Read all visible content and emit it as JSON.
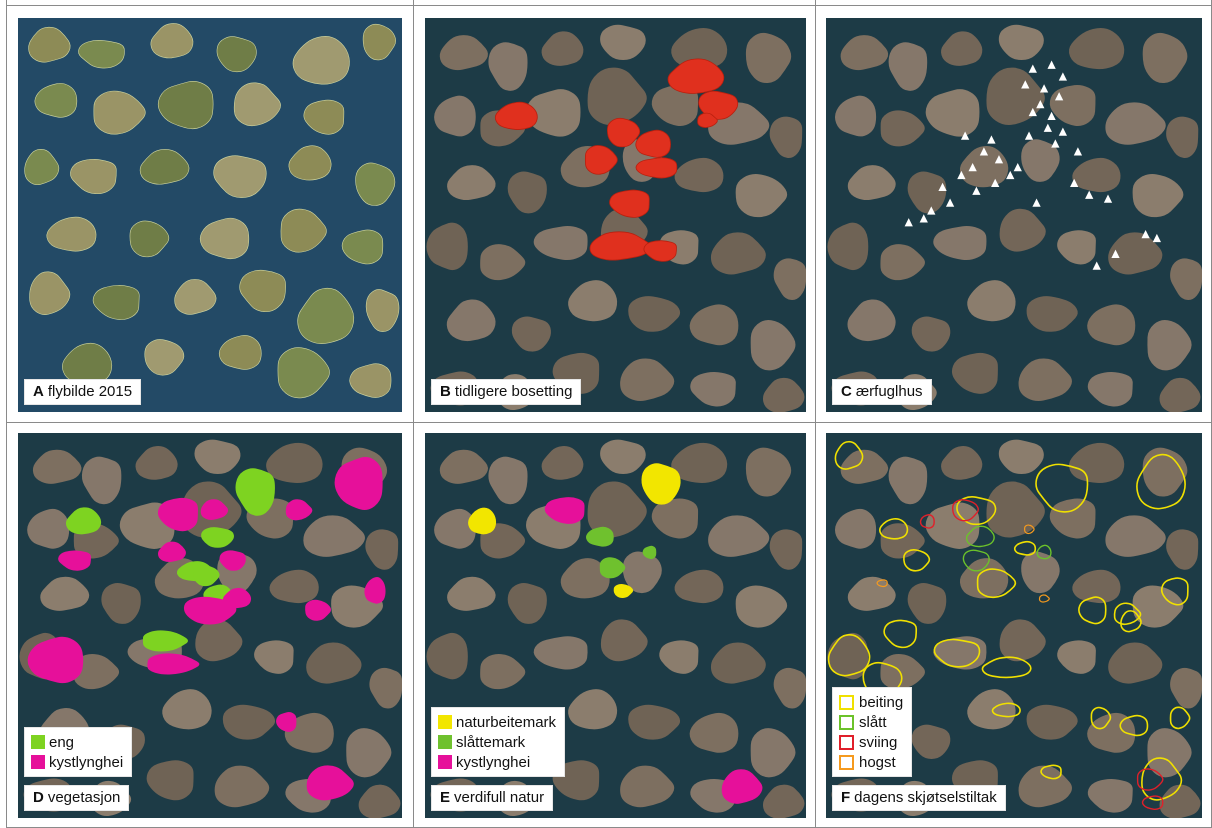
{
  "panels": [
    {
      "letter": "A",
      "label": "flybilde 2015",
      "legend": []
    },
    {
      "letter": "B",
      "label": "tidligere bosetting",
      "legend": []
    },
    {
      "letter": "C",
      "label": "ærfuglhus",
      "legend": []
    },
    {
      "letter": "D",
      "label": "vegetasjon",
      "legend": [
        {
          "label": "eng",
          "color": "#7ed321",
          "style": "fill"
        },
        {
          "label": "kystlynghei",
          "color": "#e6109a",
          "style": "fill"
        }
      ]
    },
    {
      "letter": "E",
      "label": "verdifull natur",
      "legend": [
        {
          "label": "naturbeitemark",
          "color": "#f2e600",
          "style": "fill"
        },
        {
          "label": "slåttemark",
          "color": "#6fc12e",
          "style": "fill"
        },
        {
          "label": "kystlynghei",
          "color": "#e6109a",
          "style": "fill"
        }
      ]
    },
    {
      "letter": "F",
      "label": "dagens skjøtselstiltak",
      "legend": [
        {
          "label": "beiting",
          "color": "#f0e000",
          "style": "outline"
        },
        {
          "label": "slått",
          "color": "#6cc22a",
          "style": "outline"
        },
        {
          "label": "sviing",
          "color": "#e0202a",
          "style": "outline"
        },
        {
          "label": "hogst",
          "color": "#f59a1e",
          "style": "outline"
        }
      ]
    }
  ],
  "colors": {
    "sea": "#1d3b46",
    "sea_photo": "#234a66",
    "land": "#7e7060",
    "land_photo": "#8c8a55",
    "settlement": "#e0301e",
    "eider_house": "#ffffff"
  }
}
